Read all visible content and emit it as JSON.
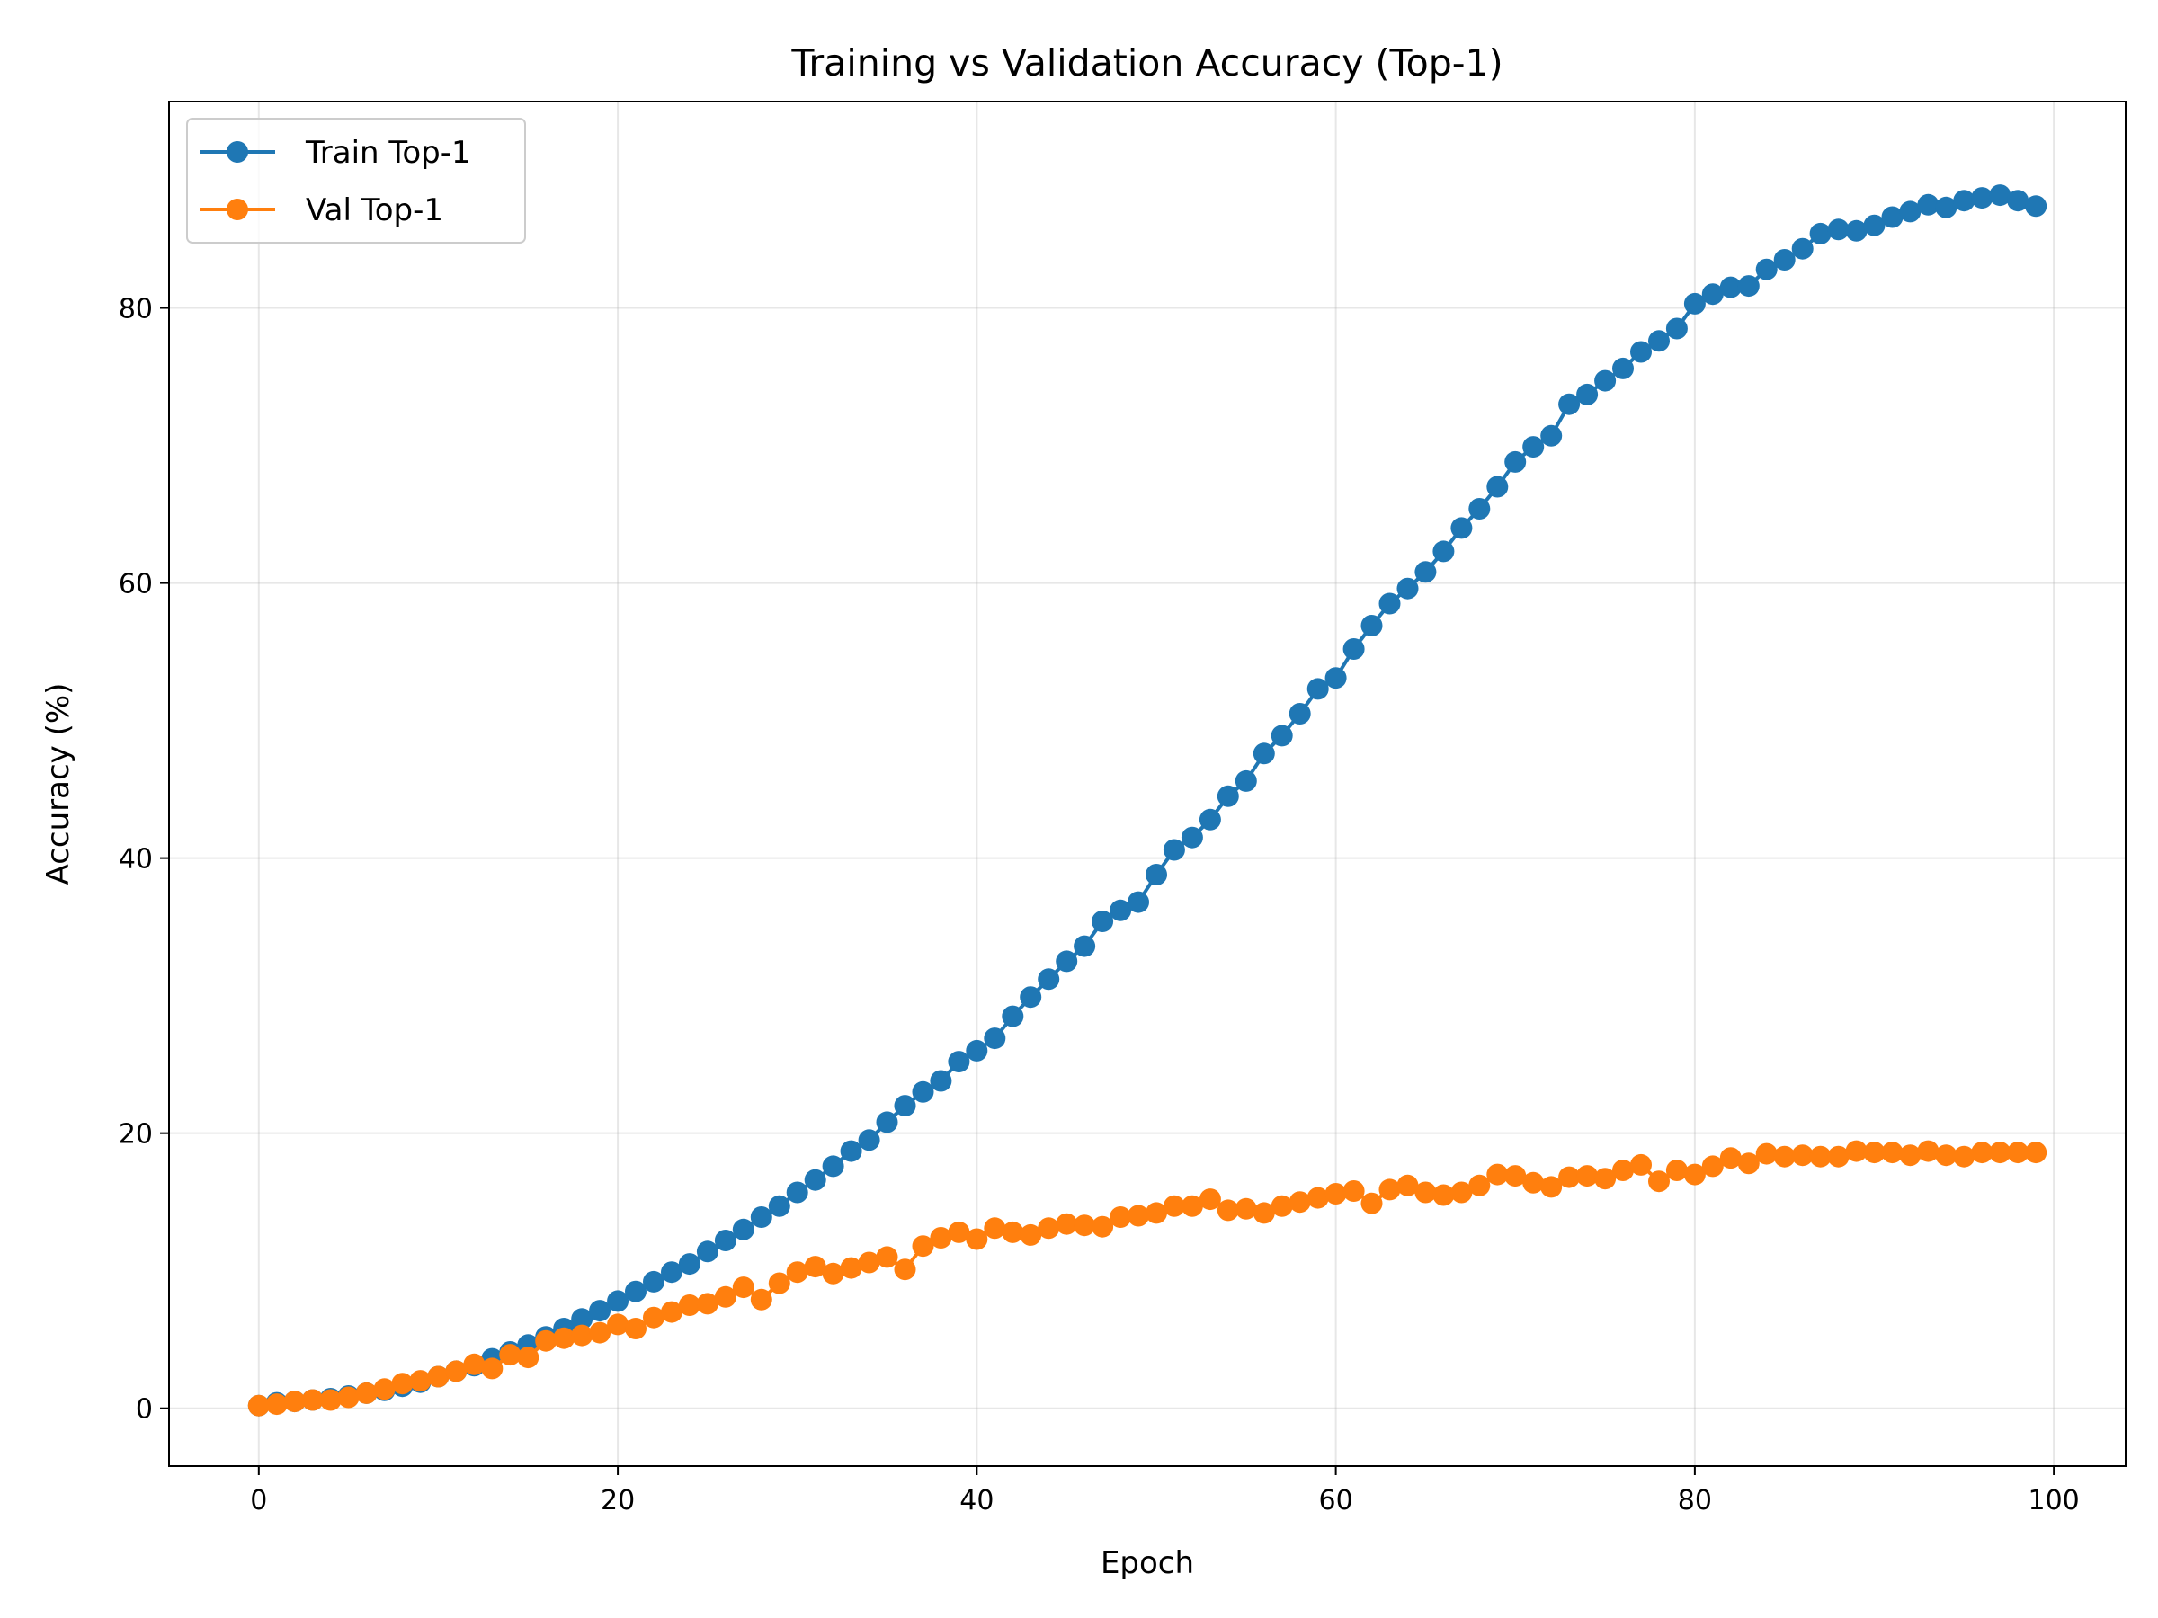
{
  "chart_data": {
    "type": "line",
    "title": "Training vs Validation Accuracy (Top-1)",
    "xlabel": "Epoch",
    "ylabel": "Accuracy (%)",
    "xlim": [
      -5,
      104
    ],
    "ylim": [
      -4.2,
      95.0
    ],
    "xticks": [
      0,
      20,
      40,
      60,
      80,
      100
    ],
    "yticks": [
      0,
      20,
      40,
      60,
      80
    ],
    "grid": true,
    "legend_position": "upper left",
    "x": [
      0,
      1,
      2,
      3,
      4,
      5,
      6,
      7,
      8,
      9,
      10,
      11,
      12,
      13,
      14,
      15,
      16,
      17,
      18,
      19,
      20,
      21,
      22,
      23,
      24,
      25,
      26,
      27,
      28,
      29,
      30,
      31,
      32,
      33,
      34,
      35,
      36,
      37,
      38,
      39,
      40,
      41,
      42,
      43,
      44,
      45,
      46,
      47,
      48,
      49,
      50,
      51,
      52,
      53,
      54,
      55,
      56,
      57,
      58,
      59,
      60,
      61,
      62,
      63,
      64,
      65,
      66,
      67,
      68,
      69,
      70,
      71,
      72,
      73,
      74,
      75,
      76,
      77,
      78,
      79,
      80,
      81,
      82,
      83,
      84,
      85,
      86,
      87,
      88,
      89,
      90,
      91,
      92,
      93,
      94,
      95,
      96,
      97,
      98,
      99
    ],
    "series": [
      {
        "name": "Train Top-1",
        "color": "#1f77b4",
        "values": [
          0.2,
          0.4,
          0.5,
          0.6,
          0.7,
          0.9,
          1.1,
          1.3,
          1.6,
          1.9,
          2.3,
          2.7,
          3.1,
          3.6,
          4.1,
          4.6,
          5.2,
          5.8,
          6.5,
          7.1,
          7.8,
          8.5,
          9.2,
          9.9,
          10.5,
          11.4,
          12.2,
          13.0,
          13.9,
          14.7,
          15.7,
          16.6,
          17.6,
          18.7,
          19.5,
          20.8,
          22.0,
          23.0,
          23.8,
          25.2,
          26.0,
          26.9,
          28.5,
          29.9,
          31.2,
          32.5,
          33.6,
          35.4,
          36.2,
          36.8,
          38.8,
          40.6,
          41.5,
          42.8,
          44.5,
          45.6,
          47.6,
          48.9,
          50.5,
          52.3,
          53.1,
          55.2,
          56.9,
          58.5,
          59.6,
          60.8,
          62.3,
          64.0,
          65.4,
          67.0,
          68.8,
          69.9,
          70.7,
          73.0,
          73.7,
          74.7,
          75.6,
          76.8,
          77.6,
          78.5,
          80.3,
          81.0,
          81.5,
          81.6,
          82.8,
          83.5,
          84.3,
          85.4,
          85.7,
          85.6,
          86.0,
          86.6,
          87.0,
          87.5,
          87.3,
          87.8,
          88.0,
          88.2,
          87.8,
          87.4
        ]
      },
      {
        "name": "Val Top-1",
        "color": "#ff7f0e",
        "values": [
          0.2,
          0.3,
          0.5,
          0.6,
          0.6,
          0.8,
          1.1,
          1.4,
          1.8,
          2.0,
          2.3,
          2.7,
          3.2,
          2.9,
          3.9,
          3.7,
          4.9,
          5.1,
          5.3,
          5.5,
          6.1,
          5.8,
          6.6,
          7.0,
          7.5,
          7.6,
          8.1,
          8.8,
          7.9,
          9.1,
          9.9,
          10.3,
          9.8,
          10.2,
          10.6,
          11.0,
          10.1,
          11.8,
          12.4,
          12.8,
          12.3,
          13.1,
          12.8,
          12.6,
          13.1,
          13.4,
          13.3,
          13.2,
          13.9,
          14.0,
          14.2,
          14.7,
          14.7,
          15.2,
          14.4,
          14.5,
          14.2,
          14.7,
          15.0,
          15.3,
          15.6,
          15.8,
          14.9,
          15.9,
          16.2,
          15.7,
          15.5,
          15.7,
          16.2,
          17.0,
          16.9,
          16.4,
          16.1,
          16.8,
          16.9,
          16.7,
          17.3,
          17.7,
          16.5,
          17.3,
          17.0,
          17.6,
          18.2,
          17.8,
          18.5,
          18.3,
          18.4,
          18.3,
          18.3,
          18.7,
          18.6,
          18.6,
          18.4,
          18.7,
          18.4,
          18.3,
          18.6,
          18.6,
          18.6,
          18.6
        ]
      }
    ]
  }
}
